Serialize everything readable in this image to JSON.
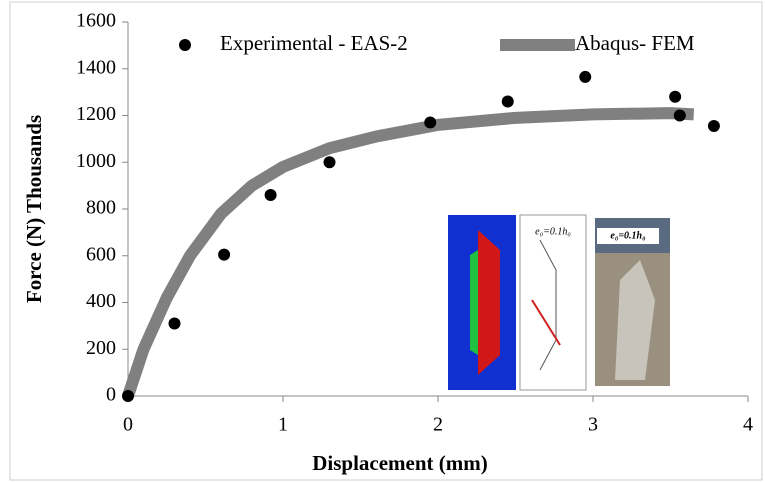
{
  "chart_data": {
    "type": "scatter",
    "xlabel": "Displacement (mm)",
    "ylabel": "Force (N) Thousands",
    "xlim": [
      0,
      4
    ],
    "xticks": [
      0,
      1,
      2,
      3,
      4
    ],
    "ylim": [
      0,
      1600
    ],
    "yticks": [
      0,
      200,
      400,
      600,
      800,
      1000,
      1200,
      1400,
      1600
    ],
    "series": [
      {
        "name": "Experimental - EAS-2",
        "type": "scatter",
        "color": "#000000",
        "x": [
          0,
          0.3,
          0.62,
          0.92,
          1.3,
          1.95,
          2.45,
          2.95,
          3.53,
          3.56,
          3.78
        ],
        "y": [
          0,
          310,
          605,
          860,
          1000,
          1170,
          1260,
          1365,
          1280,
          1200,
          1155
        ]
      },
      {
        "name": "Abaqus- FEM",
        "type": "line",
        "color": "#808080",
        "x": [
          0,
          0.1,
          0.25,
          0.4,
          0.6,
          0.8,
          1.0,
          1.3,
          1.6,
          2.0,
          2.5,
          3.0,
          3.5,
          3.65
        ],
        "y": [
          0,
          200,
          420,
          600,
          780,
          900,
          980,
          1060,
          1110,
          1160,
          1190,
          1205,
          1210,
          1205
        ]
      }
    ],
    "inset_labels": [
      "e₀=0.1h₀",
      "e₀=0.1h₀"
    ]
  }
}
